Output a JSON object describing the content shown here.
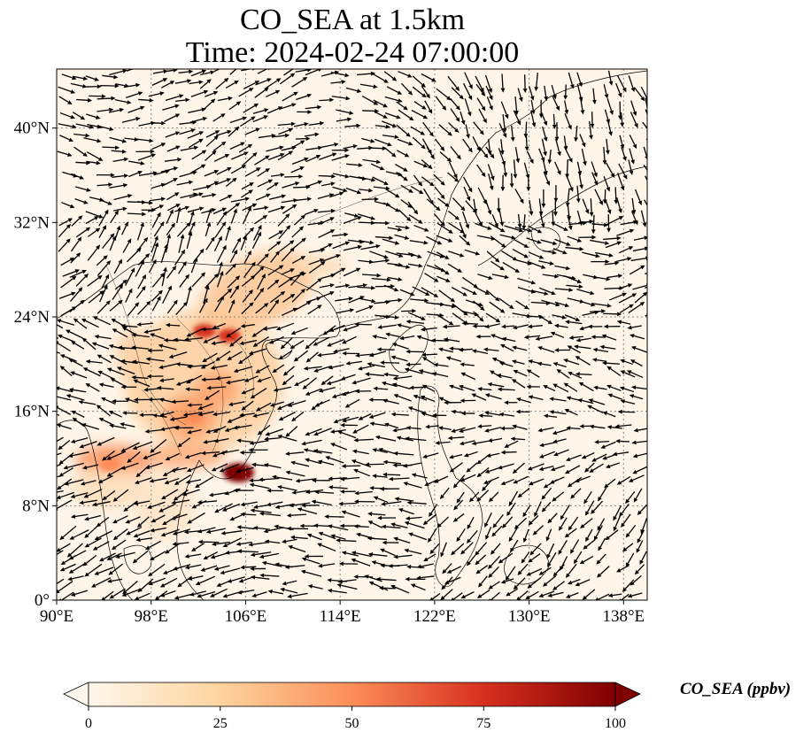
{
  "title": {
    "line1": "CO_SEA at 1.5km",
    "line2": "Time: 2024-02-24 07:00:00"
  },
  "map": {
    "projection": "PlateCarree",
    "lon_range": [
      90,
      140
    ],
    "lat_range": [
      0,
      45
    ],
    "gridlines": "dotted",
    "x_ticks": [
      "90°E",
      "98°E",
      "106°E",
      "114°E",
      "122°E",
      "130°E",
      "138°E"
    ],
    "y_ticks": [
      "0°",
      "8°N",
      "16°N",
      "24°N",
      "32°N",
      "40°N"
    ],
    "field": "CO_SEA",
    "vectors": "wind"
  },
  "colorbar": {
    "label": "CO_SEA (ppbv)",
    "ticks": [
      "0",
      "25",
      "50",
      "75",
      "100"
    ],
    "colormap": "OrRd",
    "extend": "both",
    "colors": [
      "#fff7ec",
      "#fdd49e",
      "#fc8d59",
      "#d7301f",
      "#7f0000"
    ]
  },
  "hotspots": [
    {
      "lon": 105.4,
      "lat": 10.8,
      "value": 100
    },
    {
      "lon": 104.6,
      "lat": 22.4,
      "value": 70
    },
    {
      "lon": 102.5,
      "lat": 22.8,
      "value": 60
    },
    {
      "lon": 101.5,
      "lat": 15.5,
      "value": 45
    },
    {
      "lon": 94.5,
      "lat": 11.5,
      "value": 45
    }
  ]
}
